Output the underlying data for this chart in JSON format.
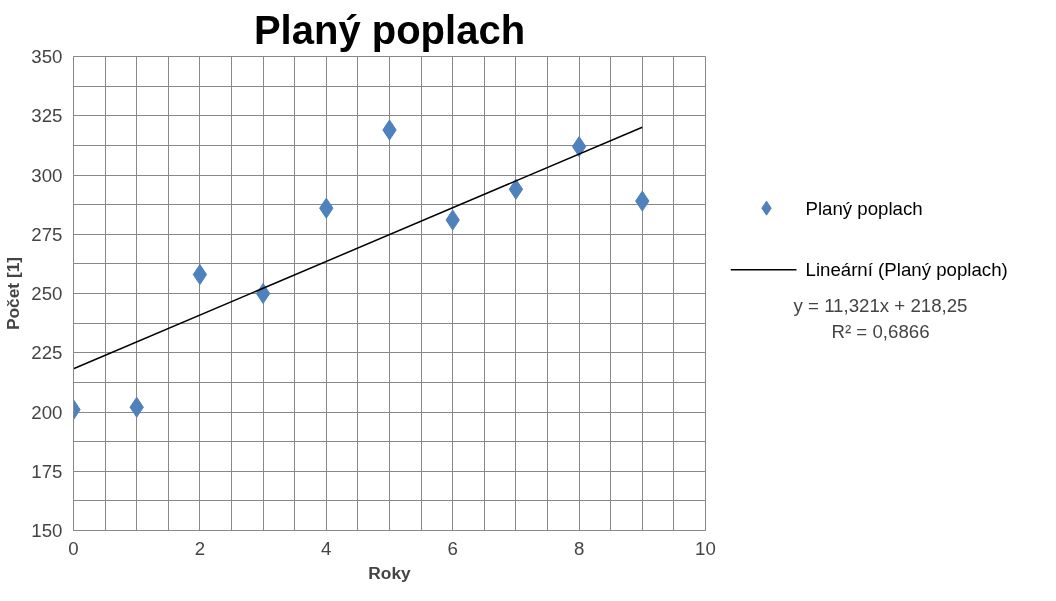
{
  "chart_data": {
    "type": "scatter",
    "title": "Planý poplach",
    "xlabel": "Roky",
    "ylabel": "Počet [1]",
    "x": [
      0,
      1,
      2,
      3,
      4,
      5,
      6,
      7,
      8,
      9
    ],
    "series": [
      {
        "name": "Planý poplach",
        "color": "#4f81bd",
        "marker": "diamond",
        "values": [
          201,
          202,
          258,
          250,
          286,
          319,
          281,
          294,
          312,
          289
        ]
      },
      {
        "name": "Lineární (Planý poplach)",
        "type": "line",
        "color": "#000000",
        "x": [
          0,
          9
        ],
        "values": [
          218.25,
          320.14
        ]
      }
    ],
    "xlim": [
      0,
      10
    ],
    "xticks": [
      0,
      2,
      4,
      6,
      8,
      10
    ],
    "ylim": [
      150,
      350
    ],
    "yticks": [
      150,
      175,
      200,
      225,
      250,
      275,
      300,
      325,
      350
    ],
    "grid": true,
    "legend": "right",
    "annotations": [
      "y = 11,321x + 218,25",
      "R² = 0,6866"
    ]
  }
}
